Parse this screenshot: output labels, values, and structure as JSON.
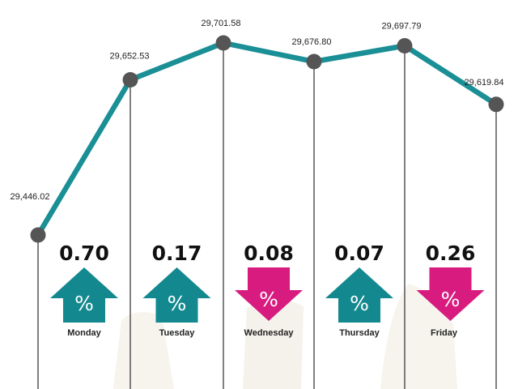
{
  "chart_data": {
    "type": "line",
    "categories": [
      "Monday",
      "Tuesday",
      "Wednesday",
      "Thursday",
      "Friday"
    ],
    "x": [
      "",
      "Monday",
      "Tuesday",
      "Wednesday",
      "Thursday",
      "Friday"
    ],
    "values": [
      29446.02,
      29652.53,
      29701.58,
      29676.8,
      29697.79,
      29619.84
    ],
    "value_labels": [
      "29,446.02",
      "29,652.53",
      "29,701.58",
      "29,676.80",
      "29,697.79",
      "29,619.84"
    ],
    "changes": [
      {
        "day": "Monday",
        "percent": "0.70",
        "direction": "up",
        "symbol": "%"
      },
      {
        "day": "Tuesday",
        "percent": "0.17",
        "direction": "up",
        "symbol": "%"
      },
      {
        "day": "Wednesday",
        "percent": "0.08",
        "direction": "down",
        "symbol": "%"
      },
      {
        "day": "Thursday",
        "percent": "0.07",
        "direction": "up",
        "symbol": "%"
      },
      {
        "day": "Friday",
        "percent": "0.26",
        "direction": "down",
        "symbol": "%"
      }
    ],
    "ylim": [
      29446.02,
      29701.58
    ],
    "grid": false,
    "colors": {
      "line": "#1a8f96",
      "point": "#555555",
      "up": "#13898f",
      "down": "#d81b7f",
      "divider": "#4a4a4a"
    }
  }
}
